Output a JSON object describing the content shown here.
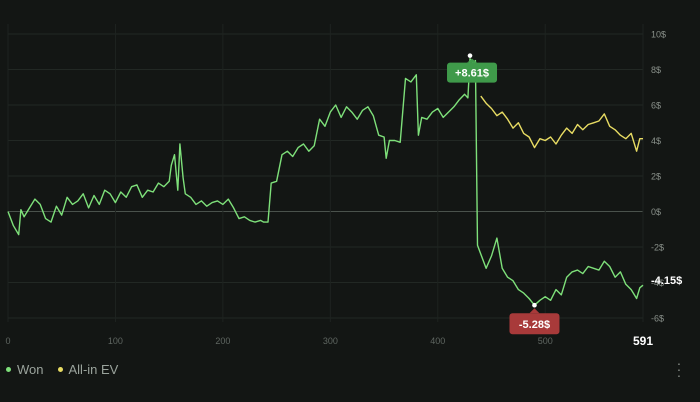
{
  "chart_data": {
    "type": "line",
    "xlim": [
      0,
      591
    ],
    "ylim": [
      -6,
      10
    ],
    "x_ticks": [
      "0",
      "100",
      "200",
      "300",
      "400",
      "500"
    ],
    "x_end_label": "591",
    "y_ticks": [
      "10$",
      "8$",
      "6$",
      "4$",
      "2$",
      "0$",
      "-2$",
      "-4$",
      "-6$"
    ],
    "y_tick_values": [
      10,
      8,
      6,
      4,
      2,
      0,
      -2,
      -4,
      -6
    ],
    "max_callout": {
      "x": 430,
      "y": 8.61,
      "label": "+8.61$"
    },
    "min_callout": {
      "x": 490,
      "y": -5.28,
      "label": "-5.28$"
    },
    "end_label": "-4.15$",
    "legend": {
      "position": "bottom-left"
    },
    "series": [
      {
        "name": "Won",
        "color": "#7ee07a",
        "x": [
          0,
          5,
          10,
          12,
          15,
          20,
          25,
          30,
          35,
          40,
          45,
          50,
          55,
          60,
          65,
          70,
          75,
          80,
          85,
          90,
          95,
          100,
          105,
          110,
          115,
          120,
          125,
          130,
          135,
          140,
          145,
          150,
          152,
          155,
          158,
          160,
          163,
          165,
          170,
          175,
          180,
          185,
          190,
          195,
          200,
          205,
          210,
          215,
          220,
          225,
          230,
          235,
          238,
          242,
          245,
          250,
          255,
          260,
          265,
          270,
          275,
          280,
          285,
          290,
          295,
          300,
          305,
          310,
          315,
          320,
          325,
          330,
          335,
          340,
          345,
          350,
          352,
          355,
          360,
          365,
          370,
          375,
          380,
          382,
          385,
          390,
          395,
          400,
          405,
          410,
          415,
          420,
          425,
          428,
          430,
          433,
          435,
          437,
          440,
          445,
          450,
          455,
          460,
          465,
          470,
          475,
          480,
          485,
          490,
          495,
          500,
          505,
          510,
          515,
          520,
          525,
          530,
          535,
          540,
          545,
          550,
          555,
          560,
          565,
          570,
          575,
          580,
          585,
          588,
          591
        ],
        "y": [
          0,
          -0.8,
          -1.3,
          0.1,
          -0.3,
          0.2,
          0.7,
          0.4,
          -0.4,
          -0.6,
          0.3,
          -0.2,
          0.8,
          0.4,
          0.6,
          1.0,
          0.2,
          0.9,
          0.4,
          1.2,
          1.0,
          0.5,
          1.1,
          0.8,
          1.4,
          1.5,
          0.8,
          1.2,
          1.1,
          1.6,
          1.4,
          1.7,
          2.6,
          3.2,
          1.2,
          3.8,
          1.9,
          1.0,
          0.8,
          0.4,
          0.6,
          0.3,
          0.5,
          0.6,
          0.4,
          0.7,
          0.2,
          -0.4,
          -0.3,
          -0.5,
          -0.6,
          -0.5,
          -0.6,
          -0.6,
          1.6,
          1.7,
          3.2,
          3.4,
          3.1,
          3.6,
          3.8,
          3.4,
          3.7,
          5.2,
          4.8,
          5.6,
          6.0,
          5.3,
          5.9,
          5.6,
          5.2,
          5.7,
          5.9,
          5.4,
          4.3,
          4.2,
          3.0,
          4.0,
          4.0,
          3.9,
          7.5,
          7.3,
          7.7,
          4.3,
          5.3,
          5.2,
          5.6,
          5.8,
          5.3,
          5.6,
          5.9,
          6.3,
          6.6,
          6.4,
          8.61,
          8.3,
          8.5,
          -1.9,
          -2.4,
          -3.2,
          -2.5,
          -1.5,
          -3.2,
          -3.7,
          -3.9,
          -4.4,
          -4.6,
          -4.9,
          -5.28,
          -5.0,
          -4.8,
          -5.0,
          -4.4,
          -4.7,
          -3.7,
          -3.4,
          -3.3,
          -3.5,
          -3.1,
          -3.2,
          -3.3,
          -2.8,
          -3.1,
          -3.7,
          -3.4,
          -4.1,
          -4.4,
          -4.9,
          -4.3,
          -4.15
        ]
      },
      {
        "name": "All-in EV",
        "color": "#e8dc63",
        "x": [
          440,
          445,
          450,
          455,
          460,
          465,
          470,
          475,
          480,
          485,
          490,
          495,
          500,
          505,
          510,
          515,
          520,
          525,
          530,
          535,
          540,
          545,
          550,
          555,
          560,
          565,
          570,
          575,
          580,
          585,
          588,
          591
        ],
        "y": [
          6.5,
          6.1,
          5.8,
          5.4,
          5.6,
          5.2,
          4.7,
          5.0,
          4.4,
          4.2,
          3.6,
          4.1,
          4.0,
          4.2,
          3.8,
          4.3,
          4.7,
          4.4,
          4.9,
          4.6,
          4.9,
          5.0,
          5.1,
          5.5,
          4.8,
          4.6,
          4.3,
          4.1,
          4.4,
          3.4,
          4.1,
          4.1
        ]
      }
    ]
  }
}
